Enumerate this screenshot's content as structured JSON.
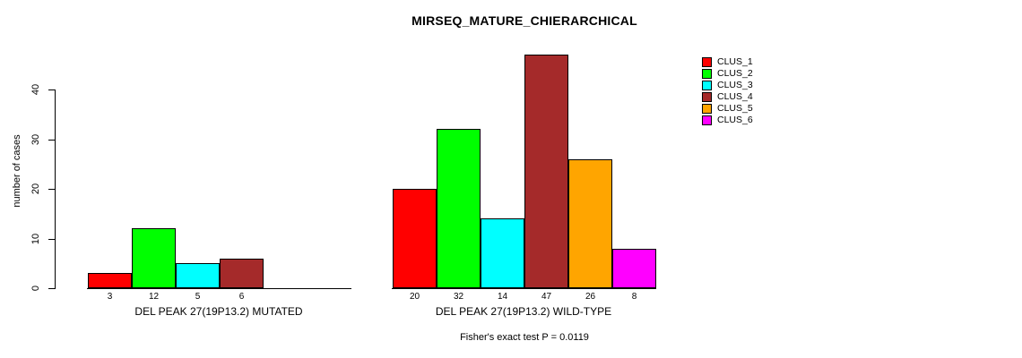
{
  "chart_data": {
    "type": "bar",
    "title": "MIRSEQ_MATURE_CHIERARCHICAL",
    "ylabel": "number of cases",
    "ylim": [
      0,
      40
    ],
    "yticks": [
      0,
      10,
      20,
      30,
      40
    ],
    "grid": false,
    "legend_position": "right",
    "categories": [
      "DEL PEAK 27(19P13.2) MUTATED",
      "DEL PEAK 27(19P13.2) WILD-TYPE"
    ],
    "series": [
      {
        "name": "CLUS_1",
        "color": "#FF0000",
        "values": [
          3,
          20
        ]
      },
      {
        "name": "CLUS_2",
        "color": "#00FF00",
        "values": [
          12,
          32
        ]
      },
      {
        "name": "CLUS_3",
        "color": "#00FFFF",
        "values": [
          5,
          14
        ]
      },
      {
        "name": "CLUS_4",
        "color": "#A52A2A",
        "values": [
          6,
          47
        ]
      },
      {
        "name": "CLUS_5",
        "color": "#FFA500",
        "values": [
          null,
          26
        ]
      },
      {
        "name": "CLUS_6",
        "color": "#FF00FF",
        "values": [
          null,
          8
        ]
      }
    ],
    "bar_value_labels": true,
    "footer": "Fisher's exact test P = 0.0119",
    "axis_color": "#000000",
    "background_color": "#FFFFFF"
  }
}
